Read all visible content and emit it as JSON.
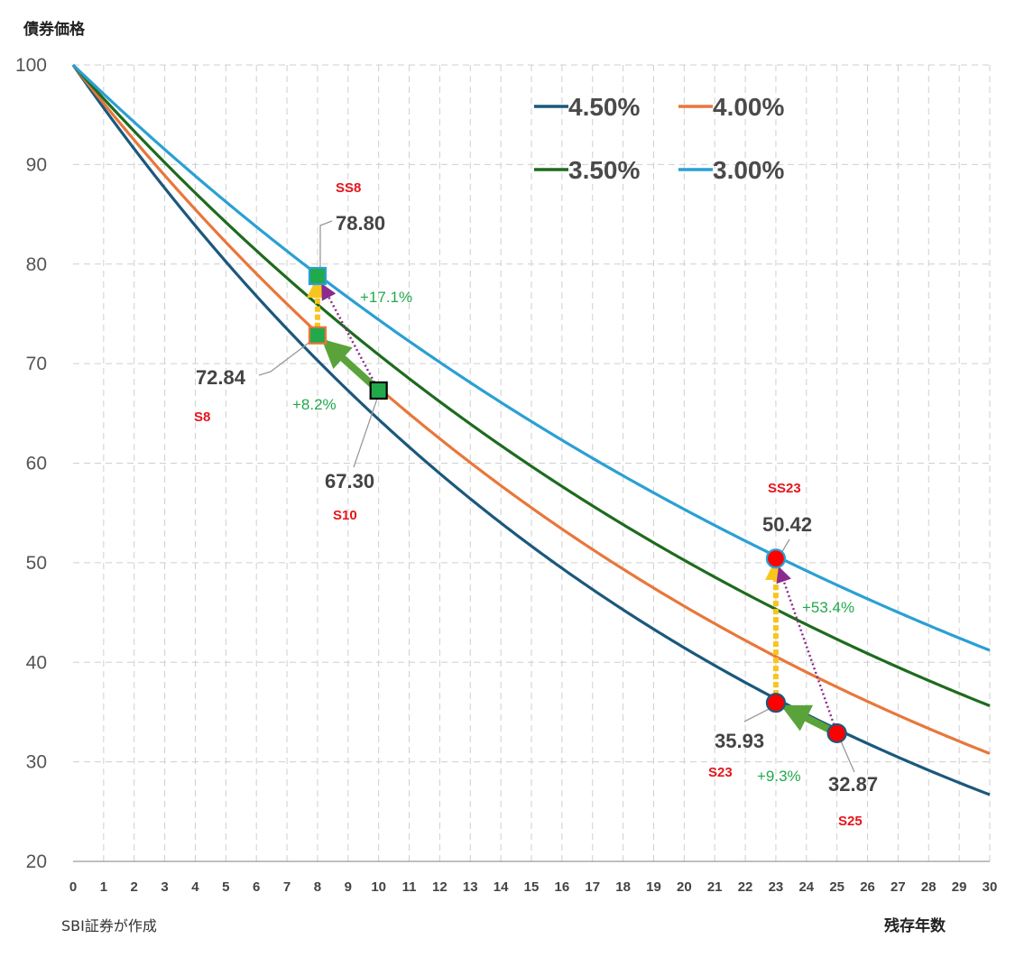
{
  "chart_data": {
    "type": "line",
    "title": "",
    "ylabel": "債券価格",
    "xlabel": "残存年数",
    "source_note": "SBI証券が作成",
    "xlim": [
      0,
      30
    ],
    "ylim": [
      20,
      100
    ],
    "x_ticks": [
      0,
      1,
      2,
      3,
      4,
      5,
      6,
      7,
      8,
      9,
      10,
      11,
      12,
      13,
      14,
      15,
      16,
      17,
      18,
      19,
      20,
      21,
      22,
      23,
      24,
      25,
      26,
      27,
      28,
      29,
      30
    ],
    "y_ticks": [
      20,
      30,
      40,
      50,
      60,
      70,
      80,
      90,
      100
    ],
    "grid": true,
    "legend_position": "top-right",
    "series": [
      {
        "name": "4.50%",
        "rate": 0.045,
        "color": "#1b587c"
      },
      {
        "name": "4.00%",
        "rate": 0.04,
        "color": "#e8773a"
      },
      {
        "name": "3.50%",
        "rate": 0.035,
        "color": "#1e6b1e"
      },
      {
        "name": "3.00%",
        "rate": 0.03,
        "color": "#2aa0d4"
      }
    ],
    "markers": [
      {
        "x": 8,
        "y": 78.8,
        "shape": "square",
        "fill": "#21a94b",
        "stroke": "#2aa0d4",
        "label": "78.80"
      },
      {
        "x": 8,
        "y": 72.84,
        "shape": "square",
        "fill": "#21a94b",
        "stroke": "#e8773a",
        "label": "72.84"
      },
      {
        "x": 10,
        "y": 67.3,
        "shape": "square",
        "fill": "#21a94b",
        "stroke": "#000000",
        "label": "67.30"
      },
      {
        "x": 23,
        "y": 50.42,
        "shape": "circle",
        "fill": "#ff0000",
        "stroke": "#2aa0d4",
        "label": "50.42"
      },
      {
        "x": 23,
        "y": 35.93,
        "shape": "circle",
        "fill": "#ff0000",
        "stroke": "#1b587c",
        "label": "35.93"
      },
      {
        "x": 25,
        "y": 32.87,
        "shape": "circle",
        "fill": "#ff0000",
        "stroke": "#1b587c",
        "label": "32.87"
      }
    ],
    "series_codes": [
      "SS8",
      "S8",
      "S10",
      "SS23",
      "S23",
      "S25"
    ],
    "annotations": [
      {
        "text": "+17.1%",
        "from": [
          10,
          67.3
        ],
        "to": [
          8,
          78.8
        ],
        "style": "dotted-purple"
      },
      {
        "text": "+8.2%",
        "from": [
          10,
          67.3
        ],
        "to": [
          8,
          72.84
        ],
        "style": "solid-green"
      },
      {
        "text": "+53.4%",
        "from": [
          25,
          32.87
        ],
        "to": [
          23,
          50.42
        ],
        "style": "dotted-purple"
      },
      {
        "text": "+9.3%",
        "from": [
          25,
          32.87
        ],
        "to": [
          23,
          35.93
        ],
        "style": "solid-green"
      }
    ],
    "yellow_arrows": [
      {
        "from": [
          8,
          72.84
        ],
        "to": [
          8,
          78.8
        ]
      },
      {
        "from": [
          23,
          35.93
        ],
        "to": [
          23,
          50.42
        ]
      }
    ]
  }
}
